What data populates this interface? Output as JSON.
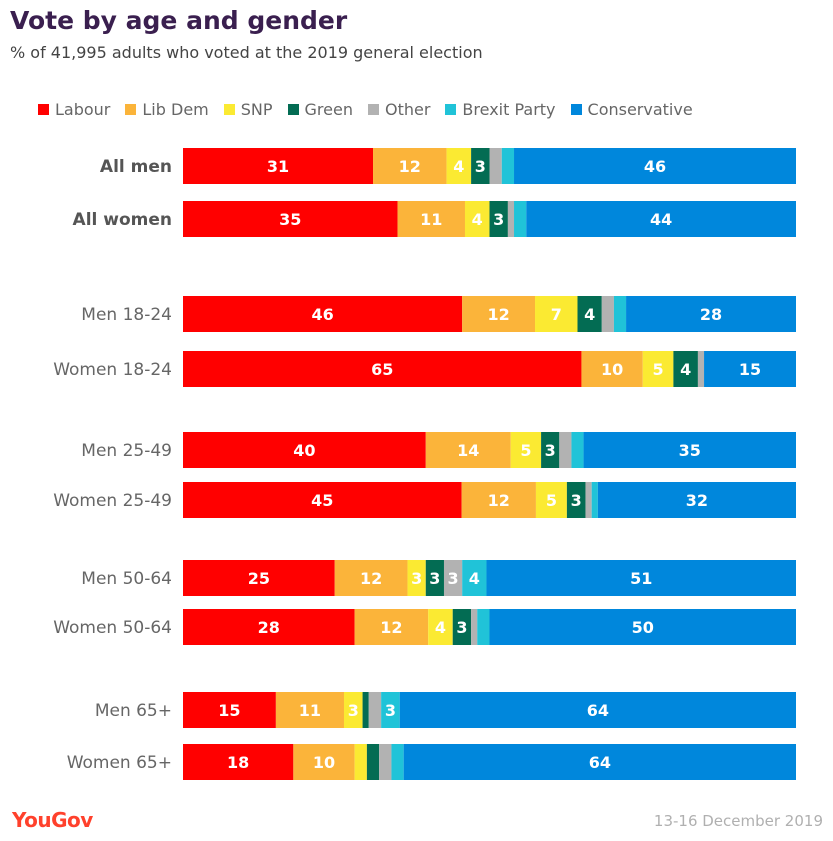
{
  "header": {
    "title": "Vote by age and gender",
    "subtitle": "% of 41,995 adults who voted at the 2019 general election"
  },
  "footer": {
    "logo": "YouGov",
    "date": "13-16 December 2019"
  },
  "chart_data": {
    "type": "bar",
    "orientation": "horizontal",
    "stacked": true,
    "xlim": [
      0,
      100
    ],
    "legend_position": "top",
    "grid": false,
    "categories": [
      "All men",
      "All women",
      "Men 18-24",
      "Women 18-24",
      "Men 25-49",
      "Women 25-49",
      "Men 50-64",
      "Women 50-64",
      "Men 65+",
      "Women 65+"
    ],
    "bold_categories": [
      "All men",
      "All women"
    ],
    "series": [
      {
        "name": "Labour",
        "color": "#ff0000",
        "values": [
          31,
          35,
          46,
          65,
          40,
          45,
          25,
          28,
          15,
          18
        ]
      },
      {
        "name": "Lib Dem",
        "color": "#fbb43a",
        "values": [
          12,
          11,
          12,
          10,
          14,
          12,
          12,
          12,
          11,
          10
        ]
      },
      {
        "name": "SNP",
        "color": "#fbea32",
        "values": [
          4,
          4,
          7,
          5,
          5,
          5,
          3,
          4,
          3,
          2
        ]
      },
      {
        "name": "Green",
        "color": "#036c53",
        "values": [
          3,
          3,
          4,
          4,
          3,
          3,
          3,
          3,
          1,
          2
        ]
      },
      {
        "name": "Other",
        "color": "#b2b2b2",
        "values": [
          2,
          1,
          2,
          1,
          2,
          1,
          3,
          1,
          2,
          2
        ]
      },
      {
        "name": "Brexit Party",
        "color": "#20c3d8",
        "values": [
          2,
          2,
          2,
          0,
          2,
          1,
          4,
          2,
          3,
          2
        ]
      },
      {
        "name": "Conservative",
        "color": "#0087dc",
        "values": [
          46,
          44,
          28,
          15,
          35,
          32,
          51,
          50,
          64,
          64
        ]
      }
    ],
    "data_labels": [
      [
        "31",
        "12",
        "4",
        "3",
        "",
        "",
        "46"
      ],
      [
        "35",
        "11",
        "4",
        "3",
        "",
        "",
        "44"
      ],
      [
        "46",
        "12",
        "7",
        "4",
        "",
        "",
        "28"
      ],
      [
        "65",
        "10",
        "5",
        "4",
        "",
        "",
        "15"
      ],
      [
        "40",
        "14",
        "5",
        "3",
        "",
        "",
        "35"
      ],
      [
        "45",
        "12",
        "5",
        "3",
        "",
        "",
        "32"
      ],
      [
        "25",
        "12",
        "3",
        "3",
        "3",
        "4",
        "51"
      ],
      [
        "28",
        "12",
        "4",
        "3",
        "",
        "",
        "50"
      ],
      [
        "15",
        "11",
        "3",
        "",
        "",
        "3",
        "64"
      ],
      [
        "18",
        "10",
        "",
        "",
        "",
        "",
        "64"
      ]
    ]
  }
}
